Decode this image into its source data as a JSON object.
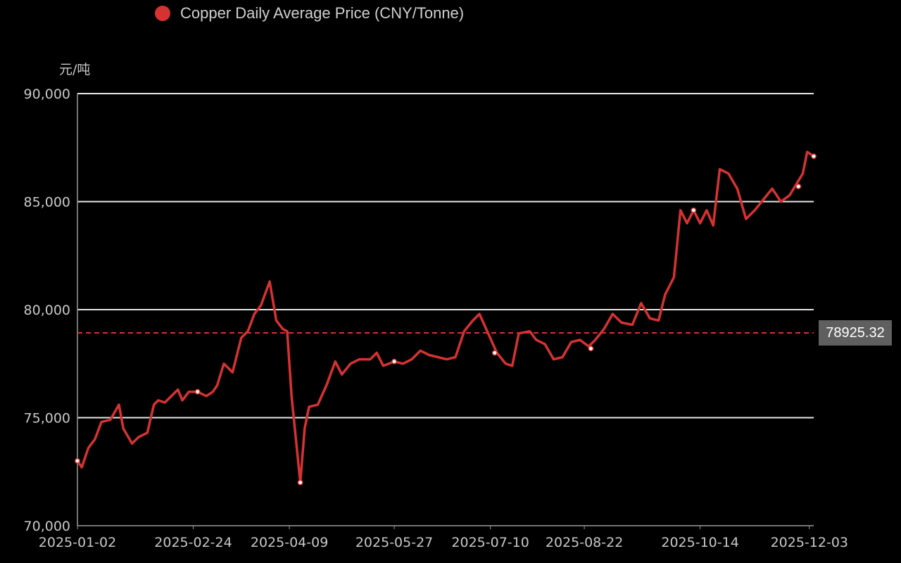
{
  "legend": {
    "label": "Copper Daily Average Price (CNY/Tonne)",
    "color": "#d63232"
  },
  "unit_label": "元/吨",
  "average": {
    "value": 78925.32,
    "label": "78925.32"
  },
  "colors": {
    "line": "#d63232",
    "grid": "#e6e6e6",
    "axis_text": "#c8c8c8",
    "badge": "#5f5f5f",
    "background": "#000000"
  },
  "chart_data": {
    "type": "line",
    "title": "",
    "xlabel": "",
    "ylabel": "元/吨",
    "ylim": [
      70000,
      90000
    ],
    "yticks": [
      70000,
      75000,
      80000,
      85000,
      90000
    ],
    "ytick_labels": [
      "70,000",
      "75,000",
      "80,000",
      "85,000",
      "90,000"
    ],
    "xlim": [
      "2025-01-02",
      "2025-12-05"
    ],
    "xticks": [
      "2025-01-02",
      "2025-02-24",
      "2025-04-09",
      "2025-05-27",
      "2025-07-10",
      "2025-08-22",
      "2025-10-14",
      "2025-12-03"
    ],
    "xtick_labels": [
      "2025-01-02",
      "2025-02-24",
      "2025-04-09",
      "2025-05-27",
      "2025-07-10",
      "2025-08-22",
      "2025-10-14",
      "2025-12-03"
    ],
    "grid": true,
    "legend_position": "top-left",
    "mark_line": {
      "type": "average",
      "value": 78925.32
    },
    "series": [
      {
        "name": "Copper Daily Average Price (CNY/Tonne)",
        "color": "#d63232",
        "points": [
          [
            "2025-01-02",
            73000
          ],
          [
            "2025-01-04",
            72700
          ],
          [
            "2025-01-07",
            73600
          ],
          [
            "2025-01-10",
            74000
          ],
          [
            "2025-01-13",
            74800
          ],
          [
            "2025-01-17",
            74900
          ],
          [
            "2025-01-21",
            75600
          ],
          [
            "2025-01-23",
            74500
          ],
          [
            "2025-01-27",
            73800
          ],
          [
            "2025-01-30",
            74100
          ],
          [
            "2025-02-03",
            74300
          ],
          [
            "2025-02-06",
            75600
          ],
          [
            "2025-02-08",
            75800
          ],
          [
            "2025-02-11",
            75700
          ],
          [
            "2025-02-14",
            76000
          ],
          [
            "2025-02-17",
            76300
          ],
          [
            "2025-02-19",
            75800
          ],
          [
            "2025-02-22",
            76200
          ],
          [
            "2025-02-26",
            76200
          ],
          [
            "2025-03-02",
            76000
          ],
          [
            "2025-03-05",
            76200
          ],
          [
            "2025-03-07",
            76500
          ],
          [
            "2025-03-10",
            77500
          ],
          [
            "2025-03-14",
            77100
          ],
          [
            "2025-03-18",
            78700
          ],
          [
            "2025-03-21",
            79000
          ],
          [
            "2025-03-24",
            79800
          ],
          [
            "2025-03-27",
            80200
          ],
          [
            "2025-03-31",
            81300
          ],
          [
            "2025-04-03",
            79500
          ],
          [
            "2025-04-06",
            79100
          ],
          [
            "2025-04-08",
            79000
          ],
          [
            "2025-04-10",
            76000
          ],
          [
            "2025-04-13",
            73000
          ],
          [
            "2025-04-14",
            72000
          ],
          [
            "2025-04-16",
            74500
          ],
          [
            "2025-04-18",
            75500
          ],
          [
            "2025-04-22",
            75600
          ],
          [
            "2025-04-26",
            76500
          ],
          [
            "2025-04-30",
            77600
          ],
          [
            "2025-05-03",
            77000
          ],
          [
            "2025-05-07",
            77500
          ],
          [
            "2025-05-11",
            77700
          ],
          [
            "2025-05-16",
            77700
          ],
          [
            "2025-05-19",
            78000
          ],
          [
            "2025-05-22",
            77400
          ],
          [
            "2025-05-27",
            77600
          ],
          [
            "2025-05-31",
            77500
          ],
          [
            "2025-06-04",
            77700
          ],
          [
            "2025-06-08",
            78100
          ],
          [
            "2025-06-12",
            77900
          ],
          [
            "2025-06-16",
            77800
          ],
          [
            "2025-06-20",
            77700
          ],
          [
            "2025-06-24",
            77800
          ],
          [
            "2025-06-28",
            79000
          ],
          [
            "2025-07-02",
            79500
          ],
          [
            "2025-07-05",
            79800
          ],
          [
            "2025-07-09",
            78900
          ],
          [
            "2025-07-13",
            78000
          ],
          [
            "2025-07-17",
            77500
          ],
          [
            "2025-07-20",
            77400
          ],
          [
            "2025-07-23",
            78900
          ],
          [
            "2025-07-28",
            79000
          ],
          [
            "2025-07-31",
            78600
          ],
          [
            "2025-08-04",
            78400
          ],
          [
            "2025-08-08",
            77700
          ],
          [
            "2025-08-12",
            77800
          ],
          [
            "2025-08-16",
            78500
          ],
          [
            "2025-08-20",
            78600
          ],
          [
            "2025-08-24",
            78300
          ],
          [
            "2025-08-27",
            78600
          ],
          [
            "2025-08-31",
            79100
          ],
          [
            "2025-09-04",
            79800
          ],
          [
            "2025-09-08",
            79400
          ],
          [
            "2025-09-13",
            79300
          ],
          [
            "2025-09-17",
            80300
          ],
          [
            "2025-09-21",
            79600
          ],
          [
            "2025-09-25",
            79500
          ],
          [
            "2025-09-28",
            80700
          ],
          [
            "2025-10-02",
            81500
          ],
          [
            "2025-10-05",
            84600
          ],
          [
            "2025-10-08",
            84000
          ],
          [
            "2025-10-11",
            84600
          ],
          [
            "2025-10-14",
            84000
          ],
          [
            "2025-10-17",
            84600
          ],
          [
            "2025-10-20",
            83900
          ],
          [
            "2025-10-23",
            86500
          ],
          [
            "2025-10-27",
            86300
          ],
          [
            "2025-10-31",
            85600
          ],
          [
            "2025-11-04",
            84200
          ],
          [
            "2025-11-08",
            84600
          ],
          [
            "2025-11-12",
            85100
          ],
          [
            "2025-11-16",
            85600
          ],
          [
            "2025-11-20",
            85000
          ],
          [
            "2025-11-24",
            85300
          ],
          [
            "2025-11-27",
            85800
          ],
          [
            "2025-11-30",
            86300
          ],
          [
            "2025-12-02",
            87300
          ],
          [
            "2025-12-05",
            87100
          ]
        ],
        "highlighted_points": [
          [
            "2025-01-02",
            73000
          ],
          [
            "2025-02-26",
            76200
          ],
          [
            "2025-04-14",
            72000
          ],
          [
            "2025-05-27",
            77600
          ],
          [
            "2025-07-12",
            78000
          ],
          [
            "2025-08-25",
            78200
          ],
          [
            "2025-10-11",
            84600
          ],
          [
            "2025-11-28",
            85700
          ],
          [
            "2025-12-05",
            87100
          ]
        ]
      }
    ]
  }
}
